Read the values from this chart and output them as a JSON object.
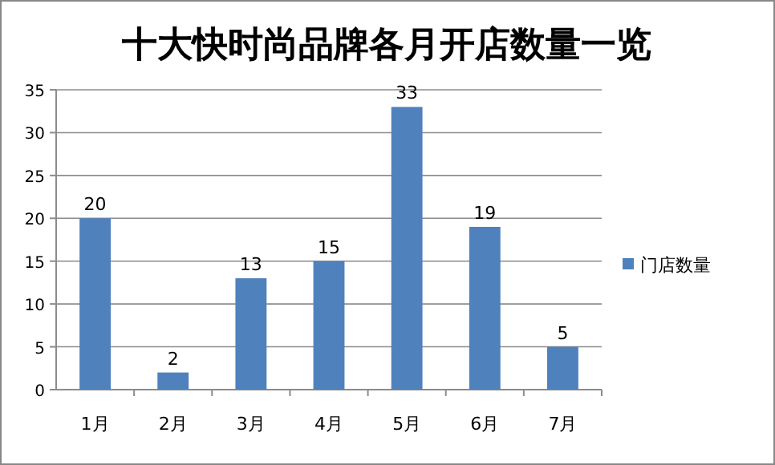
{
  "chart_data": {
    "type": "bar",
    "title": "十大快时尚品牌各月开店数量一览",
    "categories": [
      "1月",
      "2月",
      "3月",
      "4月",
      "5月",
      "6月",
      "7月"
    ],
    "series": [
      {
        "name": "门店数量",
        "color": "#4f81bd",
        "values": [
          20,
          2,
          13,
          15,
          33,
          19,
          5
        ]
      }
    ],
    "ylim": [
      0,
      35
    ],
    "yticks": [
      0,
      5,
      10,
      15,
      20,
      25,
      30,
      35
    ],
    "grid": "y",
    "legend": "right",
    "data_labels": true
  }
}
